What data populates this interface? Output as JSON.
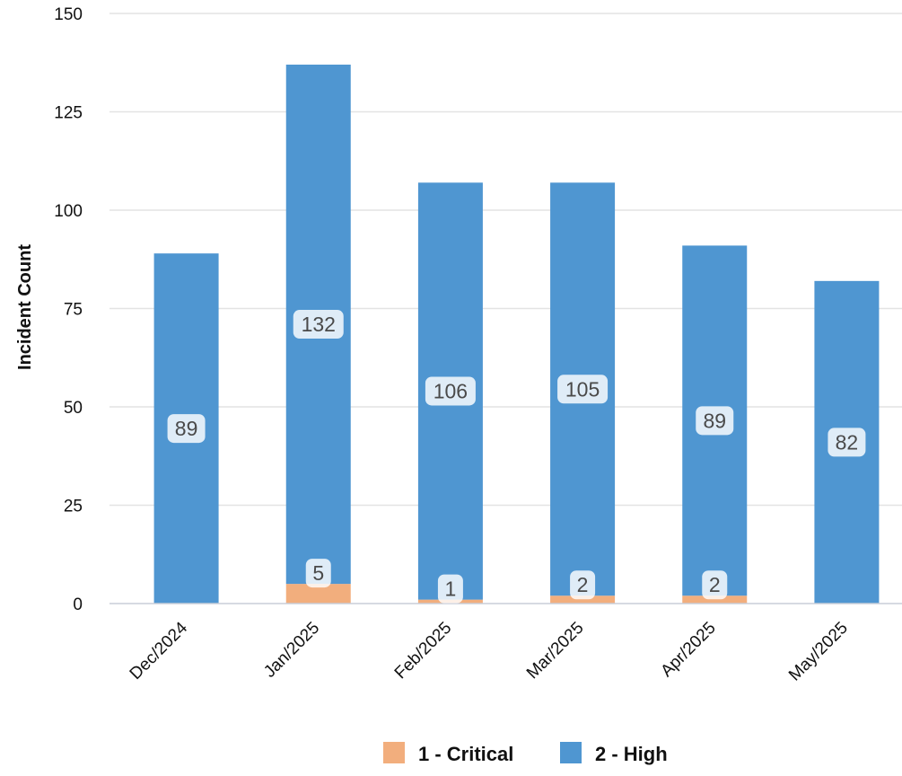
{
  "chart_data": {
    "type": "bar",
    "stacked": true,
    "title": "",
    "xlabel": "",
    "ylabel": "Incident Count",
    "ylim": [
      0,
      150
    ],
    "yticks": [
      0,
      25,
      50,
      75,
      100,
      125,
      150
    ],
    "grid": true,
    "legend_position": "bottom-center",
    "categories": [
      "Dec/2024",
      "Jan/2025",
      "Feb/2025",
      "Mar/2025",
      "Apr/2025",
      "May/2025"
    ],
    "series": [
      {
        "name": "1 - Critical",
        "color": "#f2ae7d",
        "values": [
          0,
          5,
          1,
          2,
          2,
          0
        ]
      },
      {
        "name": "2 - High",
        "color": "#4f96d1",
        "values": [
          89,
          132,
          106,
          105,
          89,
          82
        ]
      }
    ]
  }
}
